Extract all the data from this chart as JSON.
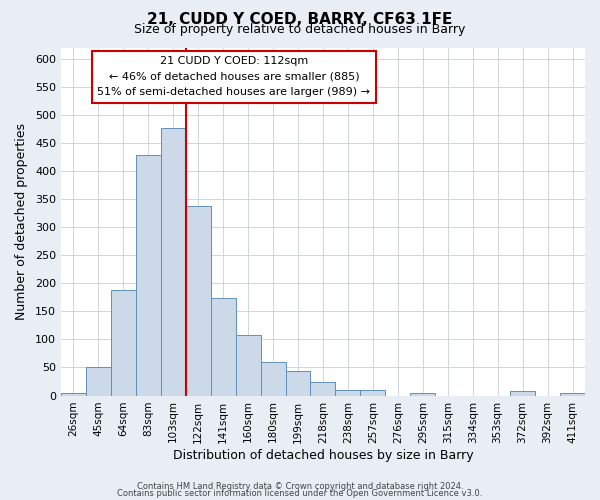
{
  "title": "21, CUDD Y COED, BARRY, CF63 1FE",
  "subtitle": "Size of property relative to detached houses in Barry",
  "xlabel": "Distribution of detached houses by size in Barry",
  "ylabel": "Number of detached properties",
  "bar_labels": [
    "26sqm",
    "45sqm",
    "64sqm",
    "83sqm",
    "103sqm",
    "122sqm",
    "141sqm",
    "160sqm",
    "180sqm",
    "199sqm",
    "218sqm",
    "238sqm",
    "257sqm",
    "276sqm",
    "295sqm",
    "315sqm",
    "334sqm",
    "353sqm",
    "372sqm",
    "392sqm",
    "411sqm"
  ],
  "bar_values": [
    5,
    50,
    188,
    428,
    476,
    338,
    173,
    107,
    60,
    44,
    25,
    10,
    10,
    0,
    5,
    0,
    0,
    0,
    8,
    0,
    5
  ],
  "bar_color": "#ccd9e8",
  "bar_edge_color": "#6090b8",
  "ylim": [
    0,
    620
  ],
  "yticks": [
    0,
    50,
    100,
    150,
    200,
    250,
    300,
    350,
    400,
    450,
    500,
    550,
    600
  ],
  "vline_x": 4.5,
  "vline_color": "#cc0000",
  "annotation_title": "21 CUDD Y COED: 112sqm",
  "annotation_line1": "← 46% of detached houses are smaller (885)",
  "annotation_line2": "51% of semi-detached houses are larger (989) →",
  "annotation_box_fill": "#ffffff",
  "annotation_box_edge": "#cc0000",
  "footer1": "Contains HM Land Registry data © Crown copyright and database right 2024.",
  "footer2": "Contains public sector information licensed under the Open Government Licence v3.0.",
  "fig_bg_color": "#e8eef4",
  "plot_bg_color": "#ffffff",
  "grid_color": "#c5d0dd"
}
